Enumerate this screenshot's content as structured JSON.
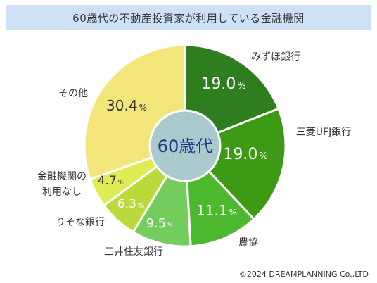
{
  "chart_data": {
    "type": "pie",
    "title": "60歳代の不動産投資家が利用している金融機関",
    "center_label": "60歳代",
    "unit": "%",
    "start_angle_deg": 0,
    "direction": "clockwise",
    "hole": true,
    "slices": [
      {
        "label": "みずほ銀行",
        "value": 19.0,
        "display": "19.0",
        "color": "#2e7d1e",
        "text_color": "#ffffff"
      },
      {
        "label": "三菱UFJ銀行",
        "value": 19.0,
        "display": "19.0",
        "color": "#3c9a15",
        "text_color": "#ffffff"
      },
      {
        "label": "農協",
        "value": 11.1,
        "display": "11.1",
        "color": "#4cb82e",
        "text_color": "#ffffff"
      },
      {
        "label": "三井住友銀行",
        "value": 9.5,
        "display": "9.5",
        "color": "#74cc5d",
        "text_color": "#ffffff"
      },
      {
        "label": "りそな銀行",
        "value": 6.3,
        "display": "6.3",
        "color": "#bcd93c",
        "text_color": "#ffffff"
      },
      {
        "label": "金融機関の\n利用なし",
        "value": 4.7,
        "display": "4.7",
        "color": "#dcec52",
        "text_color": "#333333"
      },
      {
        "label": "その他",
        "value": 30.4,
        "display": "30.4",
        "color": "#f2e67a",
        "text_color": "#333333"
      }
    ],
    "center_color": "#a9c9cc",
    "center_text_color": "#1f3a8a"
  },
  "credit": "©2024 DREAMPLANNING Co.,LTD"
}
